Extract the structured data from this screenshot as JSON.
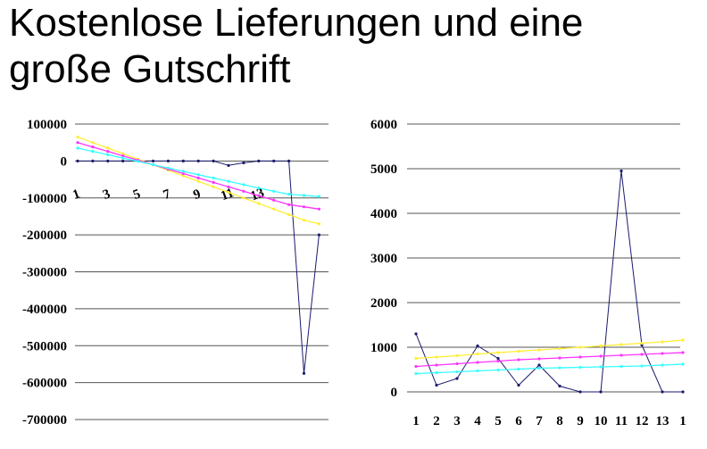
{
  "slide": {
    "title_line1": "Kostenlose Lieferungen und eine",
    "title_line2": "große Gutschrift"
  },
  "chart_data": [
    {
      "type": "line",
      "ylim": [
        -700000,
        100000
      ],
      "yticks": [
        "100000",
        "0",
        "-100000",
        "-200000",
        "-300000",
        "-400000",
        "-500000",
        "-600000",
        "-700000"
      ],
      "xticks": [
        "1",
        "3",
        "5",
        "7",
        "9",
        "11",
        "13"
      ],
      "grid": true,
      "series": [
        {
          "color": "#1a1a6e",
          "values": [
            0,
            0,
            0,
            0,
            0,
            0,
            0,
            0,
            0,
            0,
            -12000,
            -5000,
            0,
            0,
            0,
            -575000,
            -200000
          ]
        },
        {
          "color": "#ffee33",
          "values": [
            65000,
            50000,
            35000,
            20000,
            5000,
            -10000,
            -25000,
            -40000,
            -55000,
            -70000,
            -85000,
            -100000,
            -115000,
            -130000,
            -145000,
            -160000,
            -170000
          ]
        },
        {
          "color": "#ff33ff",
          "values": [
            50000,
            38000,
            26000,
            14000,
            2000,
            -10000,
            -22000,
            -34000,
            -46000,
            -58000,
            -70000,
            -82000,
            -94000,
            -106000,
            -118000,
            -124000,
            -130000
          ]
        },
        {
          "color": "#33ffff",
          "values": [
            35000,
            26000,
            17000,
            8000,
            -1000,
            -10000,
            -19000,
            -28000,
            -37000,
            -46000,
            -55000,
            -64000,
            -73000,
            -82000,
            -90000,
            -93000,
            -96000
          ]
        }
      ]
    },
    {
      "type": "line",
      "ylim": [
        0,
        6000
      ],
      "yticks": [
        "6000",
        "5000",
        "4000",
        "3000",
        "2000",
        "1000",
        "0"
      ],
      "xticks": [
        "1",
        "2",
        "3",
        "4",
        "5",
        "6",
        "7",
        "8",
        "9",
        "10",
        "11",
        "12",
        "13",
        "1"
      ],
      "grid": true,
      "series": [
        {
          "color": "#1a1a6e",
          "values": [
            1300,
            150,
            300,
            1030,
            750,
            150,
            600,
            130,
            0,
            0,
            4950,
            1050,
            0,
            0
          ]
        },
        {
          "color": "#ffee33",
          "values": [
            750,
            780,
            810,
            850,
            880,
            910,
            940,
            970,
            1000,
            1030,
            1060,
            1090,
            1120,
            1160
          ]
        },
        {
          "color": "#ff33ff",
          "values": [
            570,
            600,
            630,
            660,
            690,
            720,
            740,
            760,
            780,
            800,
            820,
            840,
            860,
            880
          ]
        },
        {
          "color": "#33ffff",
          "values": [
            410,
            430,
            450,
            470,
            490,
            510,
            530,
            540,
            550,
            560,
            570,
            580,
            600,
            620
          ]
        }
      ]
    }
  ]
}
